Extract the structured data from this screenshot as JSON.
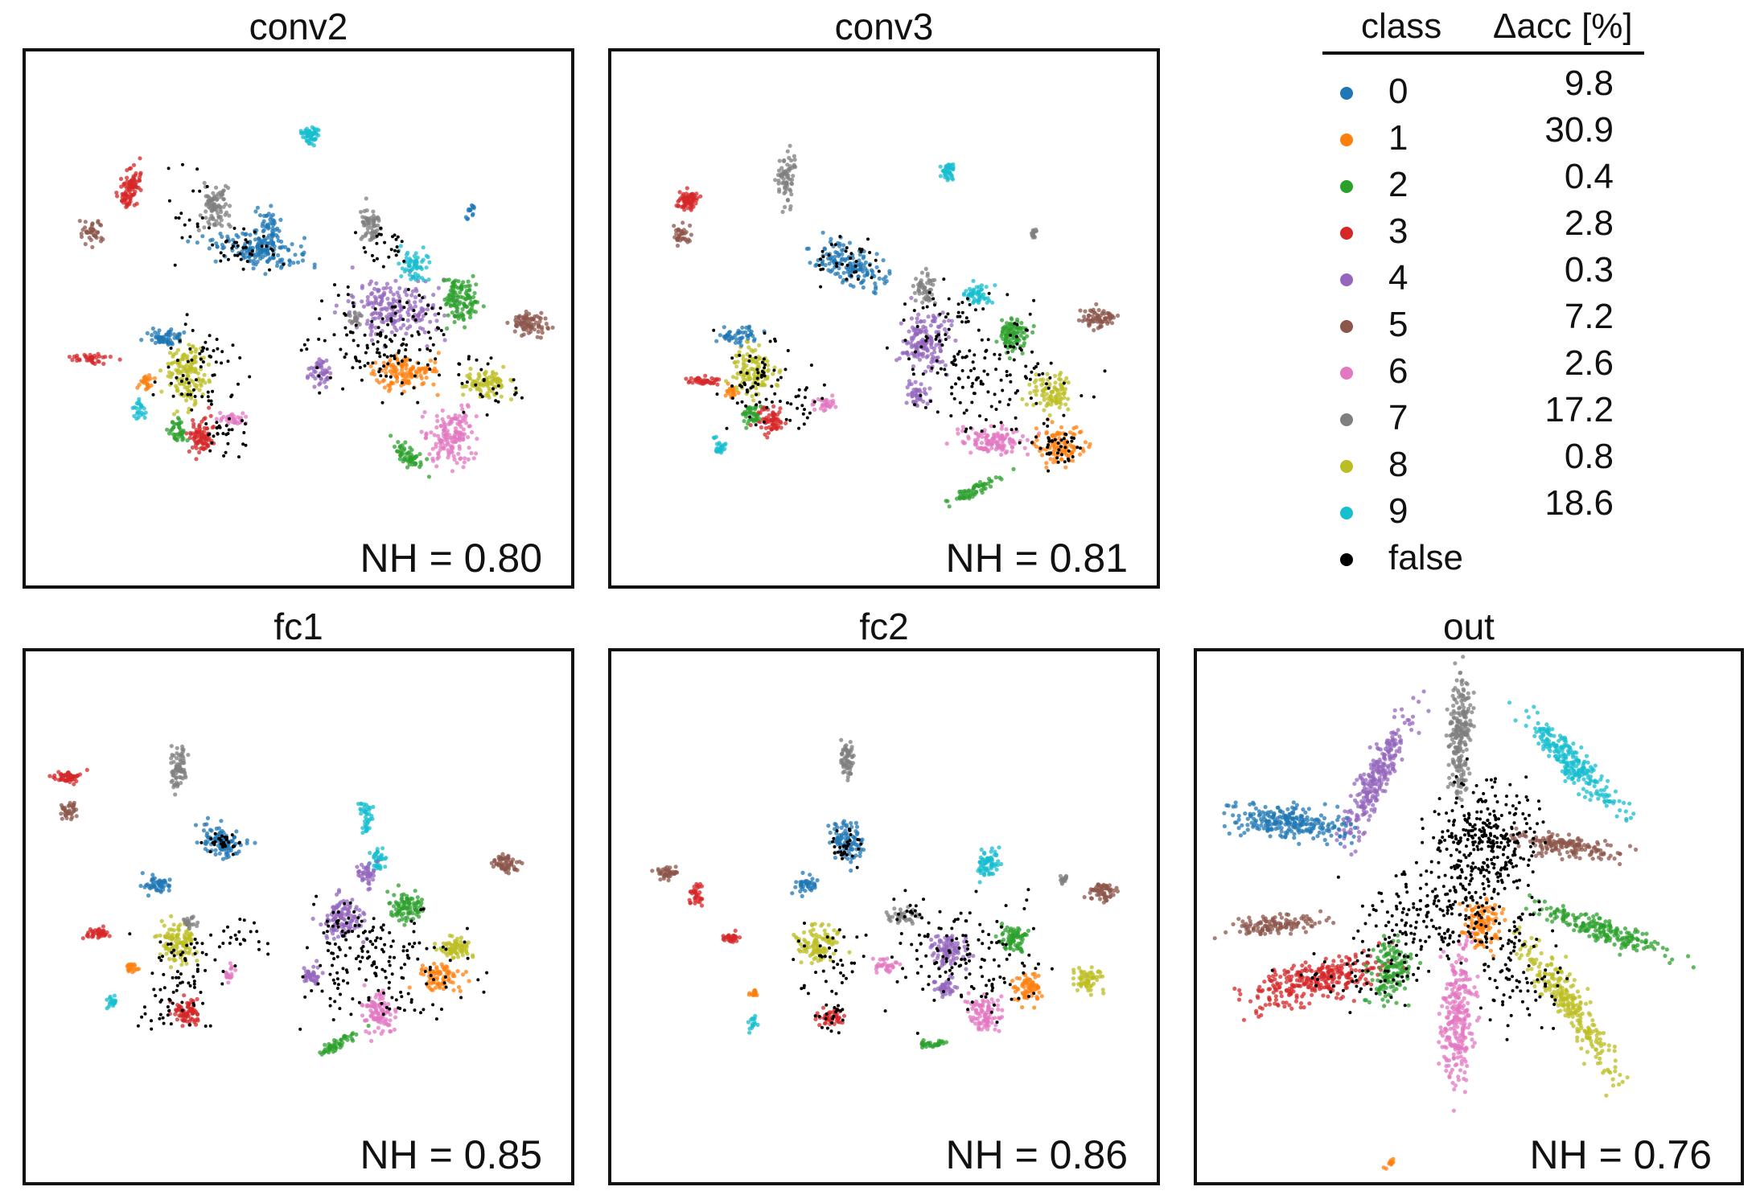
{
  "chart_data": [
    {
      "type": "scatter",
      "title": "conv2",
      "annotation": "NH = 0.80"
    },
    {
      "type": "scatter",
      "title": "conv3",
      "annotation": "NH = 0.81"
    },
    {
      "type": "scatter",
      "title": "fc1",
      "annotation": "NH = 0.85"
    },
    {
      "type": "scatter",
      "title": "fc2",
      "annotation": "NH = 0.86"
    },
    {
      "type": "scatter",
      "title": "out",
      "annotation": "NH = 0.76"
    }
  ],
  "legend": {
    "header_class": "class",
    "header_acc": "Δacc [%]",
    "rows": [
      {
        "class": "0",
        "acc": "9.8",
        "color": "#1f77b4"
      },
      {
        "class": "1",
        "acc": "30.9",
        "color": "#ff7f0e"
      },
      {
        "class": "2",
        "acc": "0.4",
        "color": "#2ca02c"
      },
      {
        "class": "3",
        "acc": "2.8",
        "color": "#d62728"
      },
      {
        "class": "4",
        "acc": "0.3",
        "color": "#9467bd"
      },
      {
        "class": "5",
        "acc": "7.2",
        "color": "#8c564b"
      },
      {
        "class": "6",
        "acc": "2.6",
        "color": "#e377c2"
      },
      {
        "class": "7",
        "acc": "17.2",
        "color": "#7f7f7f"
      },
      {
        "class": "8",
        "acc": "0.8",
        "color": "#bcbd22"
      },
      {
        "class": "9",
        "acc": "18.6",
        "color": "#17becf"
      },
      {
        "class": "false",
        "acc": "",
        "color": "#000000"
      }
    ]
  }
}
